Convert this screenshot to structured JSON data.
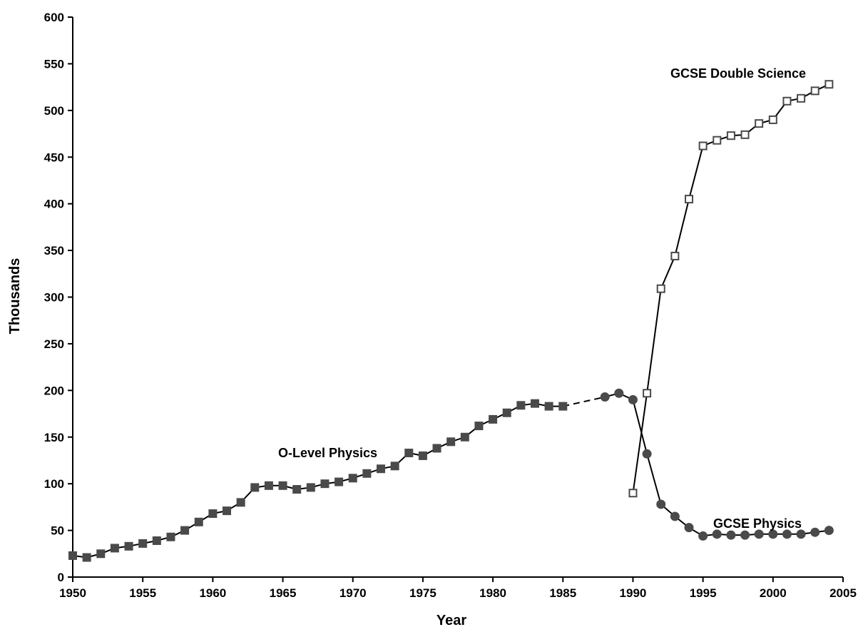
{
  "chart_data": {
    "type": "line",
    "xlabel": "Year",
    "ylabel": "Thousands",
    "xlim": [
      1950,
      2005
    ],
    "ylim": [
      0,
      600
    ],
    "x_ticks": [
      1950,
      1955,
      1960,
      1965,
      1970,
      1975,
      1980,
      1985,
      1990,
      1995,
      2000,
      2005
    ],
    "y_ticks": [
      0,
      50,
      100,
      150,
      200,
      250,
      300,
      350,
      400,
      450,
      500,
      550,
      600
    ],
    "grid": false,
    "legend": "none",
    "series": [
      {
        "name": "O-Level Physics",
        "marker": "filled-square",
        "color": "#4a4a4a",
        "x": [
          1950,
          1951,
          1952,
          1953,
          1954,
          1955,
          1956,
          1957,
          1958,
          1959,
          1960,
          1961,
          1962,
          1963,
          1964,
          1965,
          1966,
          1967,
          1968,
          1969,
          1970,
          1971,
          1972,
          1973,
          1974,
          1975,
          1976,
          1977,
          1978,
          1979,
          1980,
          1981,
          1982,
          1983,
          1984,
          1985
        ],
        "y": [
          23,
          21,
          25,
          31,
          33,
          36,
          39,
          43,
          50,
          59,
          68,
          71,
          80,
          96,
          98,
          98,
          94,
          96,
          100,
          102,
          106,
          111,
          116,
          119,
          133,
          130,
          138,
          145,
          150,
          162,
          169,
          176,
          184,
          186,
          183,
          183
        ]
      },
      {
        "name": "GCSE Physics",
        "marker": "filled-circle",
        "color": "#4a4a4a",
        "x": [
          1988,
          1989,
          1990,
          1991,
          1992,
          1993,
          1994,
          1995,
          1996,
          1997,
          1998,
          1999,
          2000,
          2001,
          2002,
          2003,
          2004
        ],
        "y": [
          193,
          197,
          190,
          132,
          78,
          65,
          53,
          44,
          46,
          45,
          45,
          46,
          46,
          46,
          46,
          48,
          50
        ]
      },
      {
        "name": "GCSE Double Science",
        "marker": "open-square",
        "color": "#4a4a4a",
        "x": [
          1990,
          1991,
          1992,
          1993,
          1994,
          1995,
          1996,
          1997,
          1998,
          1999,
          2000,
          2001,
          2002,
          2003,
          2004
        ],
        "y": [
          90,
          197,
          309,
          344,
          405,
          462,
          468,
          473,
          474,
          486,
          490,
          510,
          513,
          521,
          528
        ]
      }
    ],
    "connector": {
      "style": "dashed",
      "from": [
        1985,
        183
      ],
      "to": [
        1988,
        193
      ]
    },
    "annotations": [
      "O-Level Physics",
      "GCSE Physics",
      "GCSE Double Science"
    ]
  }
}
